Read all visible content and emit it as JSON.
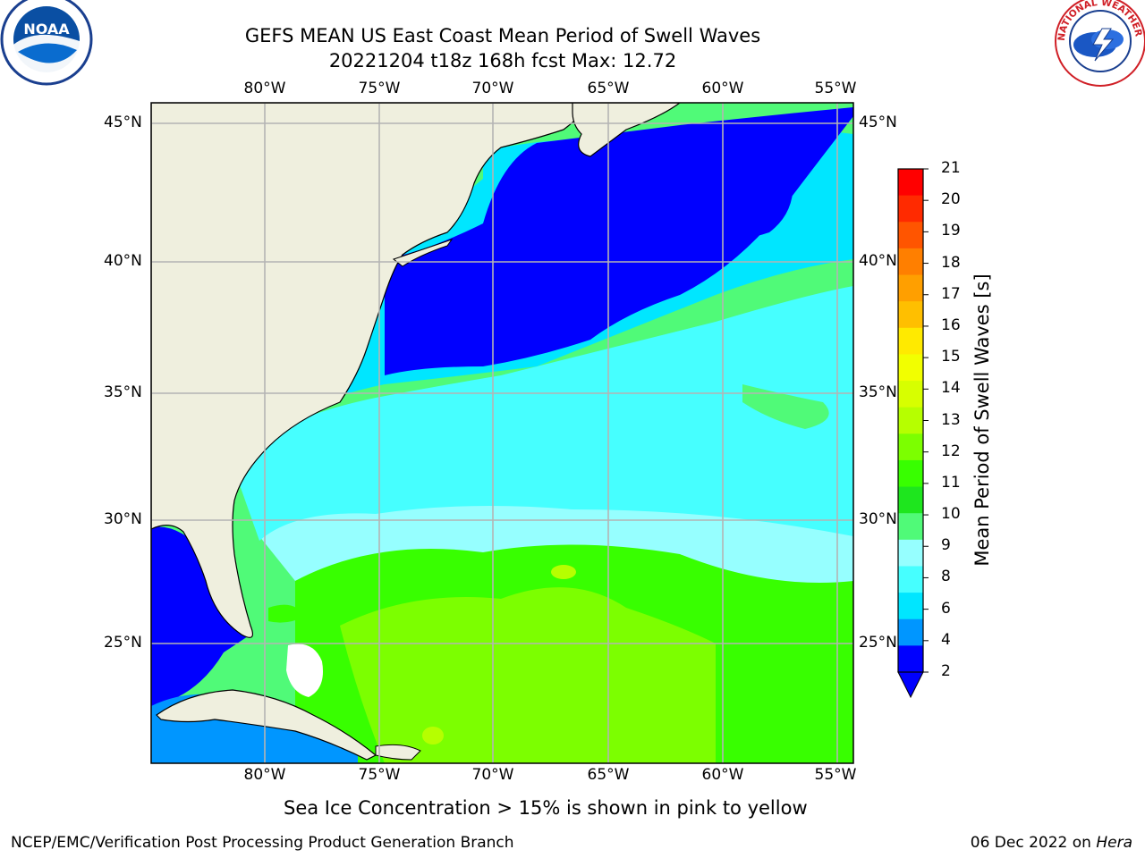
{
  "header": {
    "title_line1": "GEFS MEAN US East Coast Mean Period of Swell Waves",
    "title_line2": "20221204 t18z 168h fcst   Max: 12.72"
  },
  "logos": {
    "left": "noaa-logo",
    "right": "national-weather-service-logo",
    "left_text": "NOAA",
    "right_text": "NATIONAL WEATHER SERVICE"
  },
  "map": {
    "lon_labels": [
      "80°W",
      "75°W",
      "70°W",
      "65°W",
      "60°W",
      "55°W"
    ],
    "lat_labels": [
      "45°N",
      "40°N",
      "35°N",
      "30°N",
      "25°N"
    ],
    "region": "US East Coast",
    "max_value": 12.72
  },
  "colorbar": {
    "title": "Mean Period of Swell Waves [s]",
    "ticks": [
      "21",
      "20",
      "19",
      "18",
      "17",
      "16",
      "15",
      "14",
      "13",
      "12",
      "11",
      "10",
      "9",
      "8",
      "6",
      "4",
      "2"
    ],
    "colors": [
      "#ff0000",
      "#ff2a00",
      "#ff5500",
      "#ff7f00",
      "#ff9f00",
      "#ffbf00",
      "#ffea00",
      "#f2ff00",
      "#d7ff00",
      "#b6ff00",
      "#7cff00",
      "#38ff00",
      "#1ee61e",
      "#50fa78",
      "#96ffff",
      "#46ffff",
      "#00e6ff",
      "#0096ff",
      "#0000ff"
    ]
  },
  "notes": {
    "sea_ice": "Sea Ice Concentration > 15% is shown in pink to yellow"
  },
  "footer": {
    "left": "NCEP/EMC/Verification Post Processing Product Generation Branch",
    "date": "06 Dec 2022 on ",
    "machine": "Hera"
  }
}
